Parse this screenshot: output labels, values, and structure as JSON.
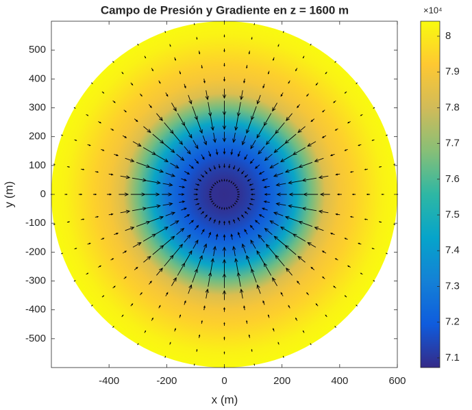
{
  "chart_data": {
    "type": "radial_field",
    "title": "Campo de Presión y Gradiente en z = 1600 m",
    "xlabel": "x (m)",
    "ylabel": "y (m)",
    "xlim": [
      -600,
      600
    ],
    "ylim": [
      -600,
      600
    ],
    "xticks": [
      -400,
      -200,
      0,
      200,
      400,
      600
    ],
    "yticks": [
      -500,
      -400,
      -300,
      -200,
      -100,
      0,
      100,
      200,
      300,
      400,
      500
    ],
    "profile": {
      "radius": [
        0,
        50,
        100,
        150,
        200,
        250,
        300,
        350,
        400,
        450,
        500,
        550,
        600
      ],
      "values": [
        70800,
        70900,
        71300,
        71900,
        72800,
        74500,
        76500,
        78300,
        79000,
        79400,
        79800,
        80200,
        80400
      ]
    },
    "clim": [
      70730,
      80420
    ],
    "cticks": [
      {
        "value": 71000,
        "label": "7.1"
      },
      {
        "value": 72000,
        "label": "7.2"
      },
      {
        "value": 73000,
        "label": "7.3"
      },
      {
        "value": 74000,
        "label": "7.4"
      },
      {
        "value": 75000,
        "label": "7.5"
      },
      {
        "value": 76000,
        "label": "7.6"
      },
      {
        "value": 77000,
        "label": "7.7"
      },
      {
        "value": 78000,
        "label": "7.8"
      },
      {
        "value": 79000,
        "label": "7.9"
      },
      {
        "value": 80000,
        "label": "8"
      }
    ],
    "colorbar_exponent": "×10⁴",
    "colormap": [
      "#352a87",
      "#0f5cdd",
      "#1481d6",
      "#06a4ca",
      "#2eb7a4",
      "#87bf77",
      "#d1bb59",
      "#fec832",
      "#f9fb0e"
    ],
    "arrow_color": "#000000"
  }
}
